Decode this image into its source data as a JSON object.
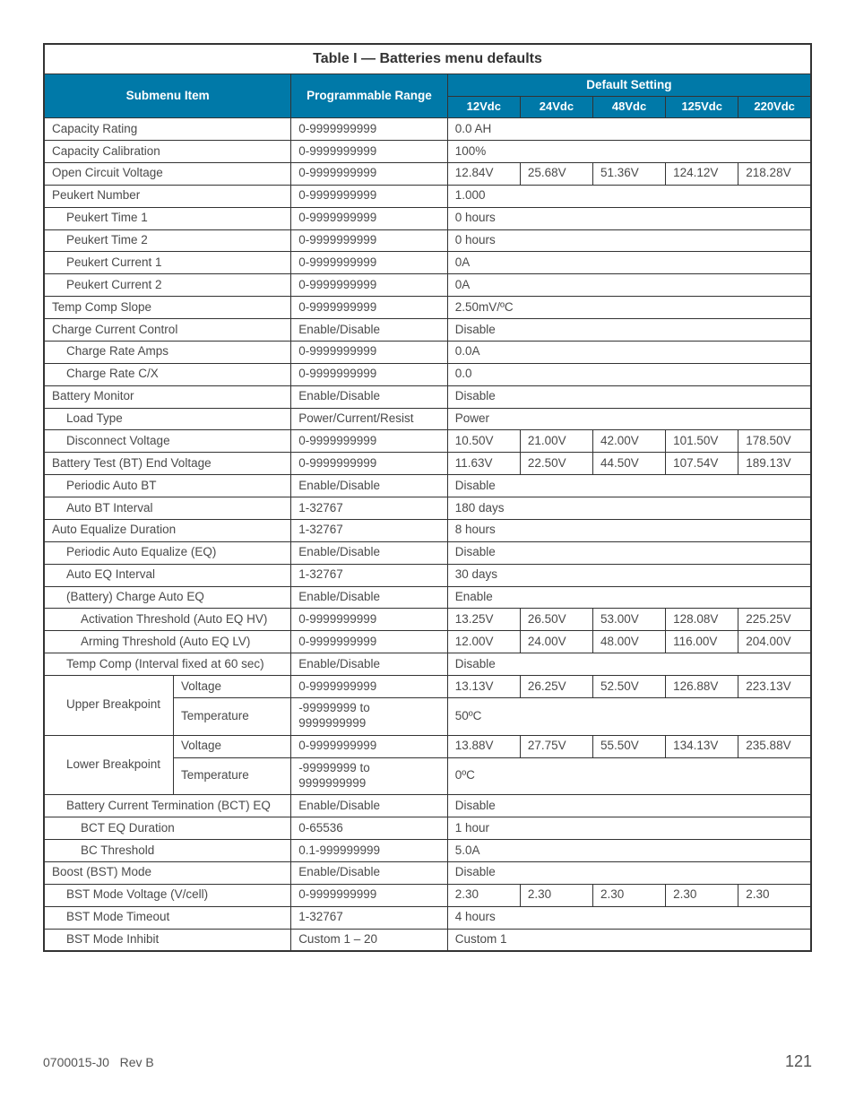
{
  "title": "Table I —  Batteries menu defaults",
  "headers": {
    "submenu": "Submenu Item",
    "range": "Programmable Range",
    "default": "Default Setting",
    "v12": "12Vdc",
    "v24": "24Vdc",
    "v48": "48Vdc",
    "v125": "125Vdc",
    "v220": "220Vdc"
  },
  "rows": [
    {
      "indent": 0,
      "label": "Capacity Rating",
      "range": "0-9999999999",
      "vals": [
        "0.0 AH"
      ]
    },
    {
      "indent": 0,
      "label": "Capacity Calibration",
      "range": "0-9999999999",
      "vals": [
        "100%"
      ]
    },
    {
      "indent": 0,
      "label": "Open Circuit Voltage",
      "range": "0-9999999999",
      "vals": [
        "12.84V",
        "25.68V",
        "51.36V",
        "124.12V",
        "218.28V"
      ]
    },
    {
      "indent": 0,
      "label": "Peukert Number",
      "range": "0-9999999999",
      "vals": [
        "1.000"
      ]
    },
    {
      "indent": 1,
      "label": "Peukert Time 1",
      "range": "0-9999999999",
      "vals": [
        "0 hours"
      ]
    },
    {
      "indent": 1,
      "label": "Peukert Time 2",
      "range": "0-9999999999",
      "vals": [
        "0 hours"
      ]
    },
    {
      "indent": 1,
      "label": "Peukert Current 1",
      "range": "0-9999999999",
      "vals": [
        "0A"
      ]
    },
    {
      "indent": 1,
      "label": "Peukert Current 2",
      "range": "0-9999999999",
      "vals": [
        "0A"
      ]
    },
    {
      "indent": 0,
      "label": "Temp Comp Slope",
      "range": "0-9999999999",
      "vals": [
        "2.50mV/ºC"
      ]
    },
    {
      "indent": 0,
      "label": "Charge Current Control",
      "range": "Enable/Disable",
      "vals": [
        "Disable"
      ]
    },
    {
      "indent": 1,
      "label": "Charge Rate Amps",
      "range": "0-9999999999",
      "vals": [
        "0.0A"
      ]
    },
    {
      "indent": 1,
      "label": "Charge Rate C/X",
      "range": "0-9999999999",
      "vals": [
        "0.0"
      ]
    },
    {
      "indent": 0,
      "label": "Battery Monitor",
      "range": "Enable/Disable",
      "vals": [
        "Disable"
      ]
    },
    {
      "indent": 1,
      "label": "Load Type",
      "range": "Power/Current/Resist",
      "vals": [
        "Power"
      ]
    },
    {
      "indent": 1,
      "label": "Disconnect Voltage",
      "range": "0-9999999999",
      "vals": [
        "10.50V",
        "21.00V",
        "42.00V",
        "101.50V",
        "178.50V"
      ]
    },
    {
      "indent": 0,
      "label": "Battery Test (BT) End Voltage",
      "range": "0-9999999999",
      "vals": [
        "11.63V",
        "22.50V",
        "44.50V",
        "107.54V",
        "189.13V"
      ]
    },
    {
      "indent": 1,
      "label": "Periodic Auto BT",
      "range": "Enable/Disable",
      "vals": [
        "Disable"
      ]
    },
    {
      "indent": 1,
      "label": "Auto BT Interval",
      "range": "1-32767",
      "vals": [
        "180 days"
      ]
    },
    {
      "indent": 0,
      "label": "Auto Equalize Duration",
      "range": "1-32767",
      "vals": [
        "8 hours"
      ]
    },
    {
      "indent": 1,
      "label": "Periodic Auto Equalize (EQ)",
      "range": "Enable/Disable",
      "vals": [
        "Disable"
      ]
    },
    {
      "indent": 1,
      "label": "Auto EQ Interval",
      "range": "1-32767",
      "vals": [
        "30 days"
      ]
    },
    {
      "indent": 1,
      "label": "(Battery) Charge Auto EQ",
      "range": "Enable/Disable",
      "vals": [
        "Enable"
      ]
    },
    {
      "indent": 2,
      "label": "Activation Threshold (Auto EQ HV)",
      "range": "0-9999999999",
      "vals": [
        "13.25V",
        "26.50V",
        "53.00V",
        "128.08V",
        "225.25V"
      ]
    },
    {
      "indent": 2,
      "label": "Arming Threshold (Auto EQ LV)",
      "range": "0-9999999999",
      "vals": [
        "12.00V",
        "24.00V",
        "48.00V",
        "116.00V",
        "204.00V"
      ]
    },
    {
      "indent": 1,
      "label": "Temp Comp (Interval fixed at 60 sec)",
      "range": "Enable/Disable",
      "vals": [
        "Disable"
      ]
    }
  ],
  "groups": [
    {
      "group_label": "Upper Breakpoint",
      "rows": [
        {
          "sub": "Voltage",
          "range": "0-9999999999",
          "vals": [
            "13.13V",
            "26.25V",
            "52.50V",
            "126.88V",
            "223.13V"
          ]
        },
        {
          "sub": "Temperature",
          "range": "-99999999 to 9999999999",
          "vals": [
            "50ºC"
          ]
        }
      ]
    },
    {
      "group_label": "Lower Breakpoint",
      "rows": [
        {
          "sub": "Voltage",
          "range": "0-9999999999",
          "vals": [
            "13.88V",
            "27.75V",
            "55.50V",
            "134.13V",
            "235.88V"
          ]
        },
        {
          "sub": "Temperature",
          "range": "-99999999 to 9999999999",
          "vals": [
            "0ºC"
          ]
        }
      ]
    }
  ],
  "tail": [
    {
      "indent": 1,
      "label": "Battery Current Termination (BCT) EQ",
      "range": "Enable/Disable",
      "vals": [
        "Disable"
      ]
    },
    {
      "indent": 2,
      "label": "BCT EQ Duration",
      "range": "0-65536",
      "vals": [
        "1 hour"
      ]
    },
    {
      "indent": 2,
      "label": "BC Threshold",
      "range": "0.1-999999999",
      "vals": [
        "5.0A"
      ]
    },
    {
      "indent": 0,
      "label": "Boost (BST) Mode",
      "range": "Enable/Disable",
      "vals": [
        "Disable"
      ]
    },
    {
      "indent": 1,
      "label": "BST Mode Voltage (V/cell)",
      "range": "0-9999999999",
      "vals": [
        "2.30",
        "2.30",
        "2.30",
        "2.30",
        "2.30"
      ]
    },
    {
      "indent": 1,
      "label": "BST Mode Timeout",
      "range": "1-32767",
      "vals": [
        "4 hours"
      ]
    },
    {
      "indent": 1,
      "label": "BST Mode Inhibit",
      "range": "Custom 1 – 20",
      "vals": [
        "Custom 1"
      ]
    }
  ],
  "footer": {
    "doc": "0700015-J0",
    "rev": "Rev B",
    "page": "121"
  }
}
